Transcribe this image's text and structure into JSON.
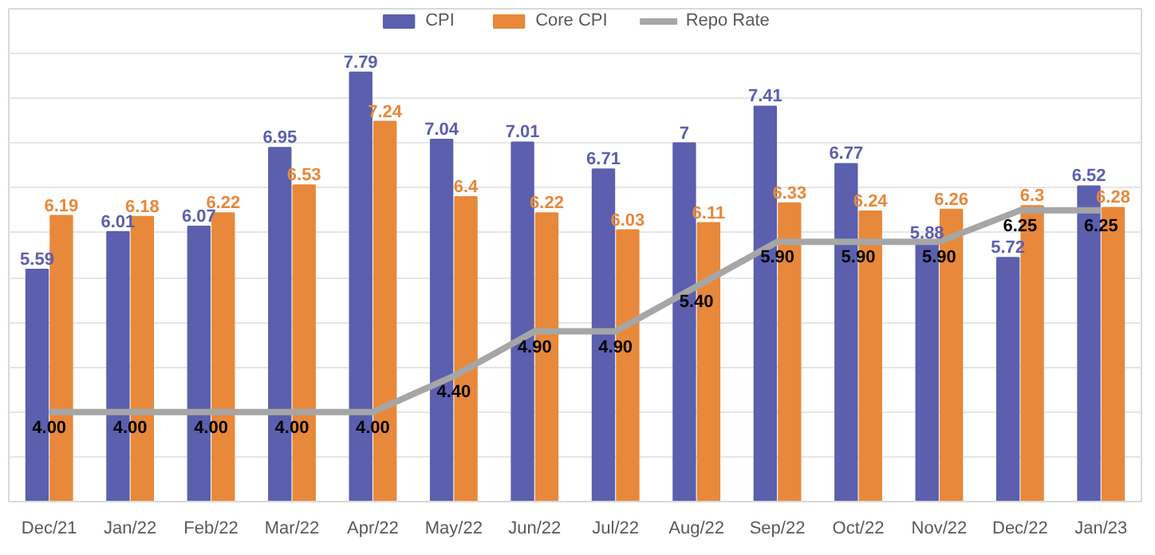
{
  "chart_data": {
    "type": "bar",
    "categories": [
      "Dec/21",
      "Jan/22",
      "Feb/22",
      "Mar/22",
      "Apr/22",
      "May/22",
      "Jun/22",
      "Jul/22",
      "Aug/22",
      "Sep/22",
      "Oct/22",
      "Nov/22",
      "Dec/22",
      "Jan/23"
    ],
    "series": [
      {
        "name": "CPI",
        "color": "#5b5fae",
        "values": [
          5.59,
          6.01,
          6.07,
          6.95,
          7.79,
          7.04,
          7.01,
          6.71,
          7,
          7.41,
          6.77,
          5.88,
          5.72,
          6.52
        ],
        "value_labels": [
          "5.59",
          "6.01",
          "6.07",
          "6.95",
          "7.79",
          "7.04",
          "7.01",
          "6.71",
          "7",
          "7.41",
          "6.77",
          "5.88",
          "5.72",
          "6.52"
        ]
      },
      {
        "name": "Core CPI",
        "color": "#e8883a",
        "values": [
          6.19,
          6.18,
          6.22,
          6.53,
          7.24,
          6.4,
          6.22,
          6.03,
          6.11,
          6.33,
          6.24,
          6.26,
          6.3,
          6.28
        ],
        "value_labels": [
          "6.19",
          "6.18",
          "6.22",
          "6.53",
          "7.24",
          "6.4",
          "6.22",
          "6.03",
          "6.11",
          "6.33",
          "6.24",
          "6.26",
          "6.3",
          "6.28"
        ]
      },
      {
        "name": "Repo Rate",
        "type": "line",
        "color": "#a6a6a6",
        "values": [
          4,
          4,
          4,
          4,
          4,
          4.4,
          4.9,
          4.9,
          5.4,
          5.9,
          5.9,
          5.9,
          6.25,
          6.25
        ],
        "value_labels": [
          "4.00",
          "4.00",
          "4.00",
          "4.00",
          "4.00",
          "4.40",
          "4.90",
          "4.90",
          "5.40",
          "5.90",
          "5.90",
          "5.90",
          "6.25",
          "6.25"
        ]
      }
    ],
    "ylim": [
      3,
      8.5
    ],
    "yticks": [
      {
        "value": 3,
        "label": null
      },
      {
        "value": 3.5,
        "label": null
      },
      {
        "value": 4,
        "label": null
      },
      {
        "value": 4.5,
        "label": null
      },
      {
        "value": 5,
        "label": null
      },
      {
        "value": 5.5,
        "label": null
      },
      {
        "value": 6,
        "label": null
      },
      {
        "value": 6.5,
        "label": null
      },
      {
        "value": 7,
        "label": null
      },
      {
        "value": 7.5,
        "label": null
      },
      {
        "value": 8,
        "label": null
      }
    ],
    "tick_labels": "x",
    "grid": "y",
    "legend": "top"
  }
}
